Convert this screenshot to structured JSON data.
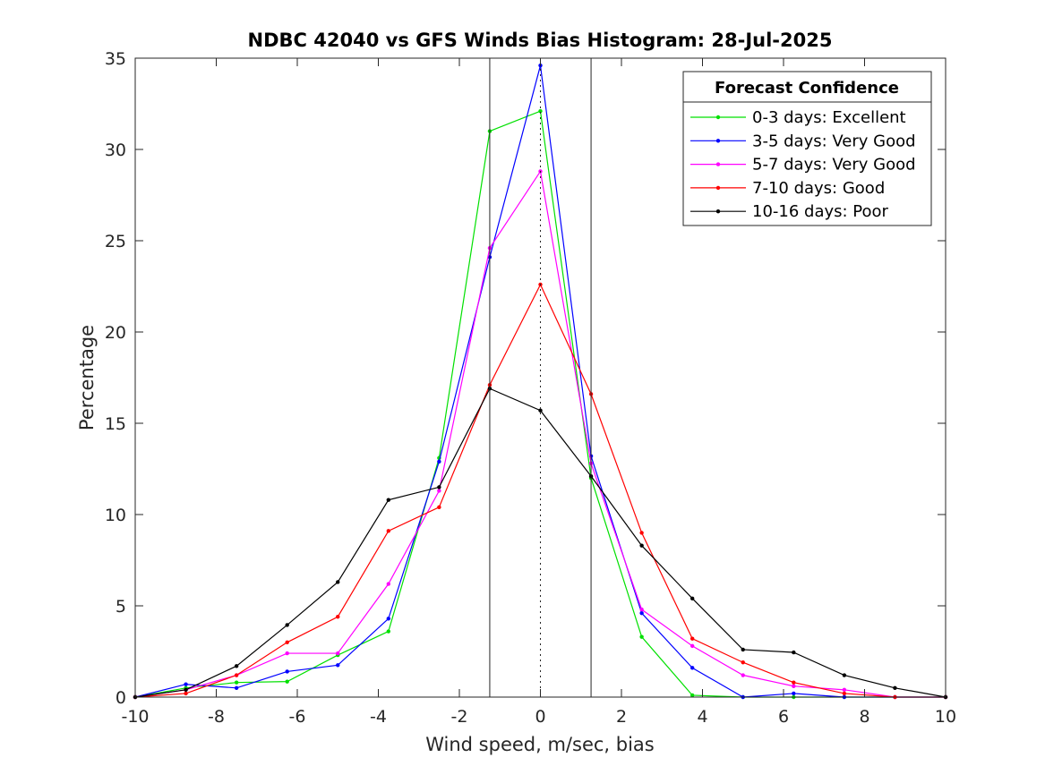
{
  "chart_data": {
    "type": "line",
    "title": "NDBC 42040 vs GFS Winds Bias Histogram: 28-Jul-2025",
    "xlabel": "Wind speed, m/sec, bias",
    "ylabel": "Percentage",
    "xlim": [
      -10,
      10
    ],
    "ylim": [
      0,
      35
    ],
    "xticks": [
      -10,
      -8,
      -6,
      -4,
      -2,
      0,
      2,
      4,
      6,
      8,
      10
    ],
    "yticks": [
      0,
      5,
      10,
      15,
      20,
      25,
      30,
      35
    ],
    "grid": false,
    "legend": {
      "title": "Forecast Confidence",
      "placement": "top-right"
    },
    "reference_lines": {
      "solid_x": [
        -1.25,
        1.25
      ],
      "dotted_x": [
        0
      ]
    },
    "x": [
      -10,
      -8.75,
      -7.5,
      -6.25,
      -5,
      -3.75,
      -2.5,
      -1.25,
      0,
      1.25,
      2.5,
      3.75,
      5,
      6.25,
      7.5,
      8.75,
      10
    ],
    "series": [
      {
        "name": "0-3 days: Excellent",
        "color": "#00e000",
        "values": [
          0,
          0.5,
          0.8,
          0.85,
          2.3,
          3.6,
          13.1,
          31.0,
          32.1,
          12.0,
          3.3,
          0.1,
          0,
          0,
          0,
          0,
          0
        ]
      },
      {
        "name": "3-5 days: Very Good",
        "color": "#0000ff",
        "values": [
          0,
          0.7,
          0.5,
          1.4,
          1.75,
          4.3,
          12.9,
          24.1,
          34.6,
          13.2,
          4.6,
          1.6,
          0,
          0.2,
          0,
          0,
          0
        ]
      },
      {
        "name": "5-7 days: Very Good",
        "color": "#ff00ff",
        "values": [
          0,
          0.4,
          1.2,
          2.4,
          2.4,
          6.2,
          11.3,
          24.6,
          28.8,
          12.8,
          4.8,
          2.8,
          1.2,
          0.6,
          0.4,
          0,
          0
        ]
      },
      {
        "name": "7-10 days: Good",
        "color": "#ff0000",
        "values": [
          0,
          0.2,
          1.2,
          3.0,
          4.4,
          9.1,
          10.4,
          17.1,
          22.6,
          16.6,
          9.0,
          3.2,
          1.9,
          0.8,
          0.2,
          0,
          0
        ]
      },
      {
        "name": "10-16 days: Poor",
        "color": "#000000",
        "values": [
          0,
          0.4,
          1.7,
          3.95,
          6.3,
          10.8,
          11.5,
          16.9,
          15.7,
          12.1,
          8.3,
          5.4,
          2.6,
          2.45,
          1.2,
          0.5,
          0
        ]
      }
    ]
  }
}
